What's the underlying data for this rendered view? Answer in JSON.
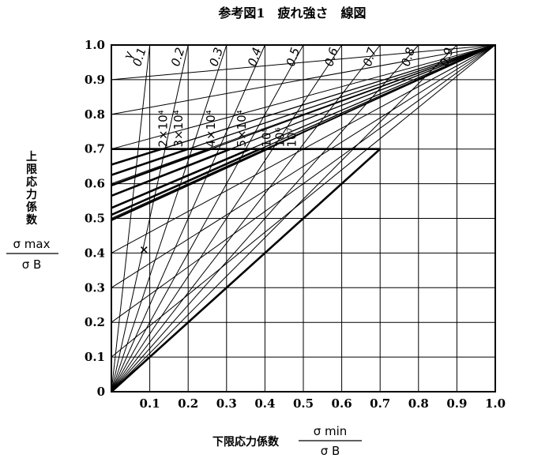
{
  "chart_data": {
    "type": "line",
    "title": "参考図1　疲れ強さ　線図",
    "xlabel": "下限応力係数",
    "x_fraction": {
      "numerator": "σ min",
      "denominator": "σ B"
    },
    "ylabel_chars": [
      "上",
      "限",
      "応",
      "力",
      "係",
      "数"
    ],
    "y_fraction": {
      "numerator": "σ max",
      "denominator": "σ B"
    },
    "xlim": [
      0,
      1.0
    ],
    "ylim": [
      0,
      1.0
    ],
    "x_ticks": [
      "0.1",
      "0.2",
      "0.3",
      "0.4",
      "0.5",
      "0.6",
      "0.7",
      "0.8",
      "0.9",
      "1.0"
    ],
    "y_ticks": [
      "0",
      "0.1",
      "0.2",
      "0.3",
      "0.4",
      "0.5",
      "0.6",
      "0.7",
      "0.8",
      "0.9",
      "1.0"
    ],
    "gamma_label": "γ",
    "gamma_lines": [
      {
        "label": "0.1",
        "ratio": 0.1
      },
      {
        "label": "0.2",
        "ratio": 0.2
      },
      {
        "label": "0.3",
        "ratio": 0.3
      },
      {
        "label": "0.4",
        "ratio": 0.4
      },
      {
        "label": "0.5",
        "ratio": 0.5
      },
      {
        "label": "0.6",
        "ratio": 0.6
      },
      {
        "label": "0.7",
        "ratio": 0.7
      },
      {
        "label": "0.8",
        "ratio": 0.8
      },
      {
        "label": "0.9",
        "ratio": 0.9
      }
    ],
    "cycle_lines": [
      {
        "label": "2×10⁴",
        "y0": 0.655
      },
      {
        "label": "3×10⁴",
        "y0": 0.625
      },
      {
        "label": "4×10⁴",
        "y0": 0.595
      },
      {
        "label": "5×10⁴",
        "y0": 0.565
      },
      {
        "label": "10⁵",
        "y0": 0.53
      },
      {
        "label": "10⁶",
        "y0": 0.51
      },
      {
        "label": "10⁷",
        "y0": 0.495
      }
    ],
    "cap_line": {
      "y": 0.7,
      "x_end": 0.7
    },
    "limit_line": [
      [
        0,
        0
      ],
      [
        0.7,
        0.7
      ]
    ],
    "marker": {
      "symbol": "×",
      "x": 0.085,
      "y": 0.415
    }
  }
}
